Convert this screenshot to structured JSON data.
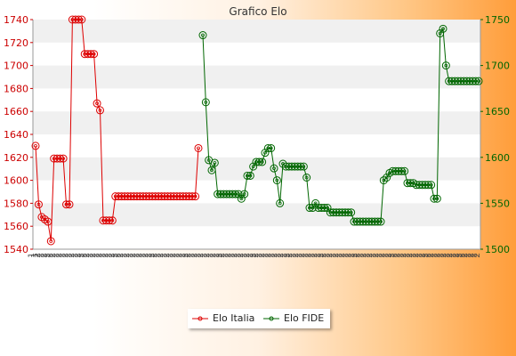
{
  "chart_data": {
    "type": "line",
    "title": "Grafico Elo",
    "left_axis": {
      "ylim": [
        1540,
        1740
      ],
      "ticks": [
        1540,
        1560,
        1580,
        1600,
        1620,
        1640,
        1660,
        1680,
        1700,
        1720,
        1740
      ],
      "color": "#cc0000"
    },
    "right_axis": {
      "ylim": [
        1500,
        1750
      ],
      "ticks": [
        1500,
        1550,
        1600,
        1650,
        1700,
        1750
      ],
      "color": "#006600"
    },
    "grid": "horizontal-bands",
    "legend_position": "bottom-center",
    "series": [
      {
        "name": "Elo Italia",
        "axis": "left",
        "color": "#dd0000",
        "values": [
          1630,
          1579,
          1568,
          1566,
          1564,
          1547,
          1619,
          1619,
          1619,
          1619,
          1579,
          1579,
          1740,
          1740,
          1740,
          1740,
          1710,
          1710,
          1710,
          1710,
          1667,
          1661,
          1565,
          1565,
          1565,
          1565,
          1586,
          1586,
          1586,
          1586,
          1586,
          1586,
          1586,
          1586,
          1586,
          1586,
          1586,
          1586,
          1586,
          1586,
          1586,
          1586,
          1586,
          1586,
          1586,
          1586,
          1586,
          1586,
          1586,
          1586,
          1586,
          1586,
          1586,
          1628
        ]
      },
      {
        "name": "Elo FIDE",
        "axis": "right",
        "color": "#006600",
        "values": [
          1733,
          1660,
          1597,
          1586,
          1594,
          1560,
          1560,
          1560,
          1560,
          1560,
          1560,
          1560,
          1560,
          1555,
          1560,
          1580,
          1580,
          1590,
          1595,
          1595,
          1595,
          1605,
          1610,
          1610,
          1588,
          1575,
          1550,
          1593,
          1590,
          1590,
          1590,
          1590,
          1590,
          1590,
          1590,
          1578,
          1545,
          1545,
          1550,
          1545,
          1545,
          1545,
          1545,
          1540,
          1540,
          1540,
          1540,
          1540,
          1540,
          1540,
          1540,
          1530,
          1530,
          1530,
          1530,
          1530,
          1530,
          1530,
          1530,
          1530,
          1530,
          1575,
          1578,
          1583,
          1585,
          1585,
          1585,
          1585,
          1585,
          1572,
          1572,
          1572,
          1570,
          1570,
          1570,
          1570,
          1570,
          1570,
          1555,
          1555,
          1735,
          1740,
          1700,
          1683,
          1683,
          1683,
          1683,
          1683,
          1683,
          1683,
          1683,
          1683,
          1683,
          1683
        ]
      }
    ],
    "x_tick_labels": [
      "1",
      "1",
      "2",
      "2",
      "2",
      "2",
      "2",
      "2",
      "2",
      "2",
      "2",
      "2",
      "2",
      "2",
      "2",
      "2",
      "2",
      "2",
      "2",
      "2",
      "2",
      "2",
      "2",
      "2",
      "2",
      "2",
      "2",
      "2",
      "2",
      "2",
      "2",
      "2",
      "2",
      "2",
      "2",
      "2",
      "2",
      "2",
      "2",
      "2",
      "2",
      "2",
      "2",
      "2",
      "2",
      "2",
      "2",
      "2",
      "2",
      "2",
      "2",
      "2",
      "2",
      "2",
      "2",
      "2",
      "2",
      "2",
      "2",
      "2",
      "2",
      "2",
      "2",
      "2",
      "2",
      "2",
      "2",
      "2",
      "2",
      "2",
      "2",
      "2",
      "2",
      "2",
      "2",
      "2",
      "2",
      "2",
      "2",
      "2",
      "2",
      "2",
      "2",
      "2",
      "2",
      "2",
      "2",
      "2",
      "2",
      "2",
      "2",
      "2",
      "2",
      "2",
      "2",
      "2",
      "2",
      "2",
      "2",
      "2",
      "2",
      "2",
      "2",
      "2",
      "2",
      "2",
      "2",
      "2",
      "2",
      "2",
      "2",
      "2",
      "2",
      "2",
      "2",
      "2",
      "2",
      "2",
      "2",
      "2",
      "2",
      "2",
      "2",
      "2",
      "2",
      "2",
      "2",
      "2",
      "2",
      "2",
      "2",
      "2",
      "2",
      "2",
      "2",
      "2",
      "2",
      "2",
      "2",
      "2",
      "2",
      "2",
      "2",
      "2",
      "2",
      "2"
    ]
  }
}
